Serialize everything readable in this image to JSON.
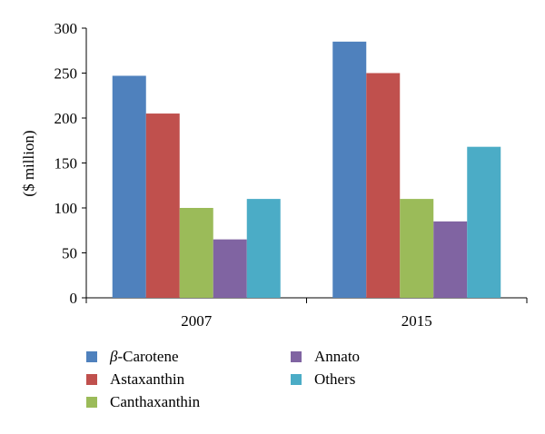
{
  "chart_data": {
    "type": "bar",
    "title": "",
    "xlabel": "",
    "ylabel": "($ million)",
    "ylim": [
      0,
      300
    ],
    "yticks": [
      0,
      50,
      100,
      150,
      200,
      250,
      300
    ],
    "grid": false,
    "legend_position": "bottom",
    "categories": [
      "2007",
      "2015"
    ],
    "series": [
      {
        "name": "β-Carotene",
        "name_prefix": "β",
        "name_suffix": "-Carotene",
        "color": "#4f81bd",
        "values": [
          247,
          285
        ]
      },
      {
        "name": "Astaxanthin",
        "color": "#c0504d",
        "values": [
          205,
          250
        ]
      },
      {
        "name": "Canthaxanthin",
        "color": "#9bbb59",
        "values": [
          100,
          110
        ]
      },
      {
        "name": "Annato",
        "color": "#8064a2",
        "values": [
          65,
          85
        ]
      },
      {
        "name": "Others",
        "color": "#4bacc6",
        "values": [
          110,
          168
        ]
      }
    ]
  }
}
